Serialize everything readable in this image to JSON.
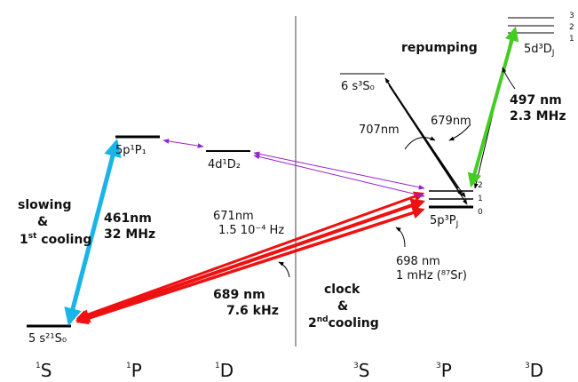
{
  "columns": [
    {
      "sup": "1",
      "base": "S"
    },
    {
      "sup": "1",
      "base": "P"
    },
    {
      "sup": "1",
      "base": "D"
    },
    {
      "sup": "3",
      "base": "S"
    },
    {
      "sup": "3",
      "base": "P"
    },
    {
      "sup": "3",
      "base": "D"
    }
  ],
  "levels": {
    "ground": "5 s²¹S₀",
    "p1": "5p¹P₁",
    "d2": "4d¹D₂",
    "s3": "6 s³S₀",
    "p3": "5p³P",
    "p3_sub": "J",
    "d3": "5d³D",
    "d3_sub": "J",
    "p3_j": [
      "2",
      "1",
      "0"
    ],
    "d3_j": [
      "3",
      "2",
      "1"
    ]
  },
  "transitions": {
    "blue_label1": "461nm",
    "blue_label2": "32 MHz",
    "slowing1": "slowing",
    "slowing2": "&",
    "slowing3_sup": "st",
    "slowing3_pre": "1",
    "slowing3_post": " cooling",
    "t671_1": "671nm",
    "t671_2": "1.5 10⁻⁴ Hz",
    "t689_1": "689 nm",
    "t689_2": "7.6 kHz",
    "clock1": "clock",
    "clock2": "&",
    "clock3_pre": "2",
    "clock3_sup": "nd",
    "clock3_post": "cooling",
    "t698_1": "698 nm",
    "t698_2": "1 mHz (⁸⁷Sr)",
    "t707": "707nm",
    "t679": "679nm",
    "repumping": "repumping",
    "t497_1": "497 nm",
    "t497_2": "2.3 MHz"
  },
  "colors": {
    "blue": "#1ab4e8",
    "red": "#ee1111",
    "green": "#44cc22",
    "purple": "#9922cc",
    "black": "#000000"
  }
}
